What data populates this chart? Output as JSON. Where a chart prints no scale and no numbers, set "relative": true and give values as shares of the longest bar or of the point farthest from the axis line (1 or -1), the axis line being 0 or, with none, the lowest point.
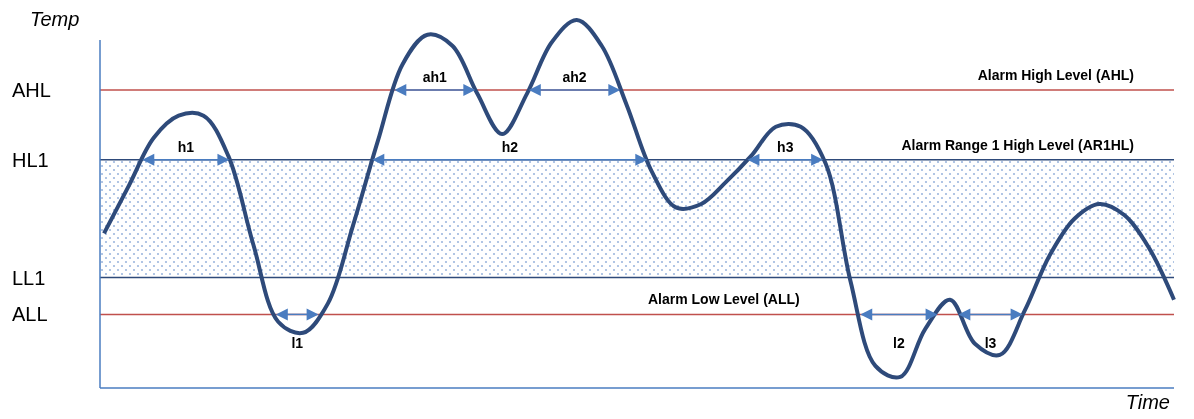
{
  "chart_data": {
    "type": "line",
    "relative": true,
    "ylabel": "Temp",
    "xlabel": "Time",
    "line_style": "solid",
    "categories": [
      null,
      null,
      null,
      null,
      null,
      null,
      null,
      null,
      null,
      null,
      null,
      null,
      null,
      null,
      null,
      null,
      null,
      null,
      null,
      null,
      null,
      null,
      null,
      null,
      null,
      null,
      null,
      null,
      null,
      null,
      null,
      null,
      null,
      null,
      null,
      null,
      null,
      null,
      null,
      null,
      null,
      null,
      null,
      null
    ],
    "series": [
      {
        "color": "#2e4a7a",
        "values": [
          0.42,
          0.55,
          0.68,
          0.74,
          0.74,
          0.63,
          0.39,
          0.18,
          0.15,
          0.23,
          0.44,
          0.67,
          0.88,
          0.96,
          0.93,
          0.8,
          0.69,
          0.8,
          0.94,
          1.0,
          0.93,
          0.77,
          0.59,
          0.49,
          0.5,
          0.56,
          0.63,
          0.71,
          0.71,
          0.61,
          0.29,
          0.06,
          0.03,
          0.16,
          0.24,
          0.12,
          0.09,
          0.21,
          0.36,
          0.46,
          0.5,
          0.47,
          0.38,
          0.24
        ]
      }
    ],
    "ref_lines": [
      {
        "axis": "y",
        "value": 0.81,
        "label": "AHL",
        "color": "#c0504d"
      },
      {
        "axis": "y",
        "value": 0.62,
        "label": "HL1",
        "color": "#2e4a7a"
      },
      {
        "axis": "y",
        "value": 0.3,
        "label": "LL1",
        "color": "#2e4a7a"
      },
      {
        "axis": "y",
        "value": 0.2,
        "label": "ALL",
        "color": "#c0504d"
      }
    ],
    "bands": [
      {
        "axis": "y",
        "from": 0.3,
        "to": 0.62,
        "color": "#9db7de"
      }
    ],
    "annotations": [
      {
        "text": "Alarm High Level (AHL)",
        "y": 0.81
      },
      {
        "text": "Alarm Range 1 High Level (AR1HL)",
        "y": 0.62
      },
      {
        "text": "Alarm Low Level (ALL)",
        "y": 0.2
      },
      {
        "text": "h1",
        "y": 0.62
      },
      {
        "text": "h2",
        "y": 0.62
      },
      {
        "text": "h3",
        "y": 0.62
      },
      {
        "text": "ah1",
        "y": 0.81
      },
      {
        "text": "ah2",
        "y": 0.81
      },
      {
        "text": "l1",
        "y": 0.2
      },
      {
        "text": "l2",
        "y": 0.2
      },
      {
        "text": "l3",
        "y": 0.2
      }
    ]
  }
}
